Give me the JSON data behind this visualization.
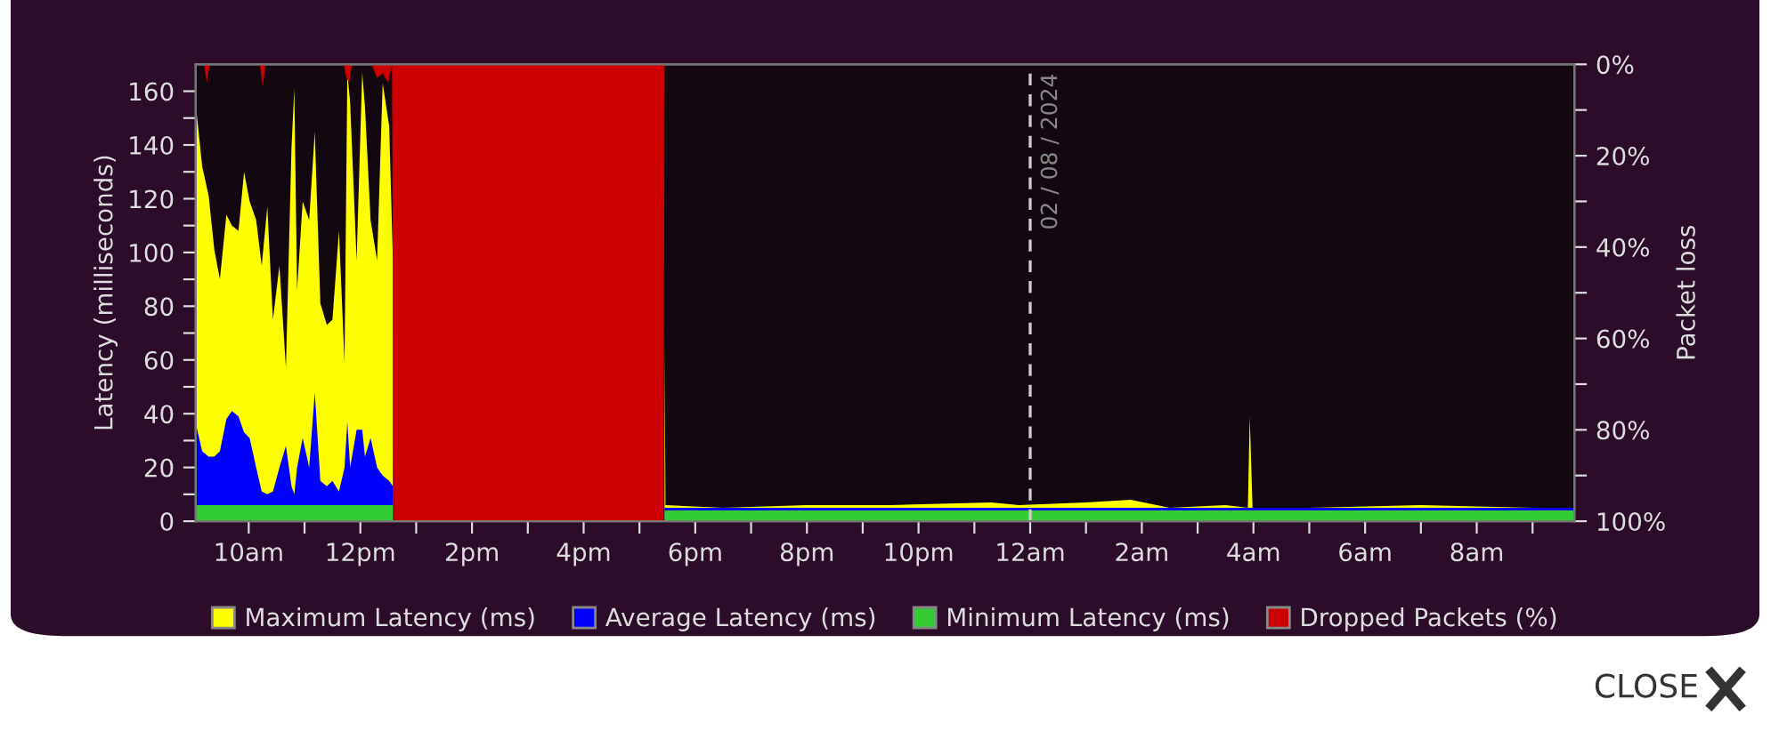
{
  "chart_data": {
    "type": "area",
    "ylabel": "Latency (milliseconds)",
    "y2label": "Packet loss",
    "xlim": [
      "2024-08-01T09:03",
      "2024-08-02T09:45"
    ],
    "xticks": [
      {
        "value": "2024-08-01T10:00",
        "label": "10am"
      },
      {
        "value": "2024-08-01T11:00",
        "label": null
      },
      {
        "value": "2024-08-01T12:00",
        "label": "12pm"
      },
      {
        "value": "2024-08-01T13:00",
        "label": null
      },
      {
        "value": "2024-08-01T14:00",
        "label": "2pm"
      },
      {
        "value": "2024-08-01T15:00",
        "label": null
      },
      {
        "value": "2024-08-01T16:00",
        "label": "4pm"
      },
      {
        "value": "2024-08-01T17:00",
        "label": null
      },
      {
        "value": "2024-08-01T18:00",
        "label": "6pm"
      },
      {
        "value": "2024-08-01T19:00",
        "label": null
      },
      {
        "value": "2024-08-01T20:00",
        "label": "8pm"
      },
      {
        "value": "2024-08-01T21:00",
        "label": null
      },
      {
        "value": "2024-08-01T22:00",
        "label": "10pm"
      },
      {
        "value": "2024-08-01T23:00",
        "label": null
      },
      {
        "value": "2024-08-02T00:00",
        "label": "12am"
      },
      {
        "value": "2024-08-02T01:00",
        "label": null
      },
      {
        "value": "2024-08-02T02:00",
        "label": "2am"
      },
      {
        "value": "2024-08-02T03:00",
        "label": null
      },
      {
        "value": "2024-08-02T04:00",
        "label": "4am"
      },
      {
        "value": "2024-08-02T05:00",
        "label": null
      },
      {
        "value": "2024-08-02T06:00",
        "label": "6am"
      },
      {
        "value": "2024-08-02T07:00",
        "label": null
      },
      {
        "value": "2024-08-02T08:00",
        "label": "8am"
      },
      {
        "value": "2024-08-02T09:00",
        "label": null
      }
    ],
    "ylim": [
      0,
      170
    ],
    "yticks": [
      0,
      {
        "value": 10,
        "label": null
      },
      20,
      {
        "value": 30,
        "label": null
      },
      40,
      {
        "value": 50,
        "label": null
      },
      60,
      {
        "value": 70,
        "label": null
      },
      80,
      {
        "value": 90,
        "label": null
      },
      100,
      {
        "value": 110,
        "label": null
      },
      120,
      {
        "value": 130,
        "label": null
      },
      140,
      {
        "value": 150,
        "label": null
      },
      160
    ],
    "y2lim": [
      100,
      0
    ],
    "y2ticks": [
      {
        "value": 0,
        "label": "0%"
      },
      {
        "value": 10,
        "label": null
      },
      {
        "value": 20,
        "label": "20%"
      },
      {
        "value": 30,
        "label": null
      },
      {
        "value": 40,
        "label": "40%"
      },
      {
        "value": 50,
        "label": null
      },
      {
        "value": 60,
        "label": "60%"
      },
      {
        "value": 70,
        "label": null
      },
      {
        "value": 80,
        "label": "80%"
      },
      {
        "value": 90,
        "label": null
      },
      {
        "value": 100,
        "label": "100%"
      }
    ],
    "legend": "bottom",
    "ref_lines": [
      {
        "axis": "x",
        "value": "2024-08-02T00:00",
        "label": "02 / 08 / 2024",
        "color": "#cccccc",
        "line_style": "dashed"
      }
    ],
    "annotations": [
      "CLOSE"
    ],
    "series": [
      {
        "name": "Maximum Latency (ms)",
        "color": "#ffff00",
        "x": [
          "2024-08-01T09:04",
          "2024-08-01T09:10",
          "2024-08-01T09:17",
          "2024-08-01T09:23",
          "2024-08-01T09:29",
          "2024-08-01T09:36",
          "2024-08-01T09:42",
          "2024-08-01T09:49",
          "2024-08-01T09:55",
          "2024-08-01T10:01",
          "2024-08-01T10:08",
          "2024-08-01T10:14",
          "2024-08-01T10:20",
          "2024-08-01T10:26",
          "2024-08-01T10:33",
          "2024-08-01T10:40",
          "2024-08-01T10:46",
          "2024-08-01T10:49",
          "2024-08-01T10:52",
          "2024-08-01T10:58",
          "2024-08-01T11:05",
          "2024-08-01T11:11",
          "2024-08-01T11:17",
          "2024-08-01T11:24",
          "2024-08-01T11:30",
          "2024-08-01T11:37",
          "2024-08-01T11:43",
          "2024-08-01T11:46",
          "2024-08-01T11:49",
          "2024-08-01T11:56",
          "2024-08-01T12:02",
          "2024-08-01T12:05",
          "2024-08-01T12:11",
          "2024-08-01T12:18",
          "2024-08-01T12:24",
          "2024-08-01T12:31",
          "2024-08-01T12:35",
          "2024-08-01T12:36",
          "2024-08-01T17:26",
          "2024-08-01T17:27",
          "2024-08-01T17:28",
          "2024-08-01T18:30",
          "2024-08-01T20:00",
          "2024-08-01T21:30",
          "2024-08-01T23:18",
          "2024-08-01T23:48",
          "2024-08-02T01:00",
          "2024-08-02T01:48",
          "2024-08-02T02:30",
          "2024-08-02T03:30",
          "2024-08-02T03:54",
          "2024-08-02T03:56",
          "2024-08-02T03:59",
          "2024-08-02T05:00",
          "2024-08-02T07:00",
          "2024-08-02T09:00",
          "2024-08-02T09:45"
        ],
        "values": [
          152,
          132,
          121,
          101,
          90,
          114,
          110,
          108,
          130,
          119,
          112,
          95,
          117,
          75,
          95,
          57,
          139,
          161,
          86,
          119,
          112,
          145,
          81,
          73,
          75,
          108,
          59,
          167,
          156,
          97,
          167,
          154,
          112,
          97,
          163,
          147,
          97,
          null,
          null,
          68,
          6,
          5,
          6,
          6,
          7,
          6,
          7,
          8,
          5,
          6,
          5,
          39,
          5,
          5,
          6,
          5,
          5
        ]
      },
      {
        "name": "Average Latency (ms)",
        "color": "#0000ff",
        "x": [
          "2024-08-01T09:04",
          "2024-08-01T09:10",
          "2024-08-01T09:17",
          "2024-08-01T09:23",
          "2024-08-01T09:29",
          "2024-08-01T09:36",
          "2024-08-01T09:42",
          "2024-08-01T09:49",
          "2024-08-01T09:55",
          "2024-08-01T10:01",
          "2024-08-01T10:08",
          "2024-08-01T10:14",
          "2024-08-01T10:20",
          "2024-08-01T10:26",
          "2024-08-01T10:33",
          "2024-08-01T10:40",
          "2024-08-01T10:46",
          "2024-08-01T10:49",
          "2024-08-01T10:52",
          "2024-08-01T10:58",
          "2024-08-01T11:05",
          "2024-08-01T11:11",
          "2024-08-01T11:17",
          "2024-08-01T11:24",
          "2024-08-01T11:30",
          "2024-08-01T11:37",
          "2024-08-01T11:43",
          "2024-08-01T11:46",
          "2024-08-01T11:49",
          "2024-08-01T11:56",
          "2024-08-01T12:02",
          "2024-08-01T12:05",
          "2024-08-01T12:11",
          "2024-08-01T12:18",
          "2024-08-01T12:24",
          "2024-08-01T12:31",
          "2024-08-01T12:35",
          "2024-08-01T12:36",
          "2024-08-01T17:26",
          "2024-08-01T17:27",
          "2024-08-01T20:00",
          "2024-08-02T00:00",
          "2024-08-02T04:00",
          "2024-08-02T09:45"
        ],
        "values": [
          35,
          26,
          24,
          24,
          26,
          38,
          41,
          39,
          33,
          31,
          20,
          11,
          10,
          11,
          20,
          28,
          13,
          10,
          20,
          31,
          20,
          48,
          15,
          13,
          15,
          11,
          20,
          37,
          20,
          34,
          34,
          24,
          31,
          20,
          17,
          15,
          13,
          null,
          null,
          5,
          5,
          5,
          5,
          5
        ]
      },
      {
        "name": "Minimum Latency (ms)",
        "color": "#33cc33",
        "x": [
          "2024-08-01T09:04",
          "2024-08-01T12:35",
          "2024-08-01T12:36",
          "2024-08-01T17:26",
          "2024-08-01T17:27",
          "2024-08-02T09:45"
        ],
        "values": [
          6,
          6,
          null,
          null,
          4,
          4
        ]
      },
      {
        "name": "Dropped Packets (%)",
        "color": "#cc0000",
        "axis": "y2",
        "x": [
          "2024-08-01T09:04",
          "2024-08-01T09:12",
          "2024-08-01T09:15",
          "2024-08-01T09:18",
          "2024-08-01T09:24",
          "2024-08-01T10:12",
          "2024-08-01T10:15",
          "2024-08-01T10:18",
          "2024-08-01T11:42",
          "2024-08-01T11:45",
          "2024-08-01T11:48",
          "2024-08-01T11:51",
          "2024-08-01T12:12",
          "2024-08-01T12:18",
          "2024-08-01T12:24",
          "2024-08-01T12:30",
          "2024-08-01T12:34",
          "2024-08-01T12:36",
          "2024-08-01T17:26",
          "2024-08-01T17:27",
          "2024-08-02T09:45"
        ],
        "values": [
          0,
          0,
          4,
          0,
          0,
          0,
          5,
          0,
          0,
          3,
          4,
          0,
          0,
          3,
          2,
          4,
          0,
          100,
          100,
          0,
          0
        ]
      }
    ]
  }
}
